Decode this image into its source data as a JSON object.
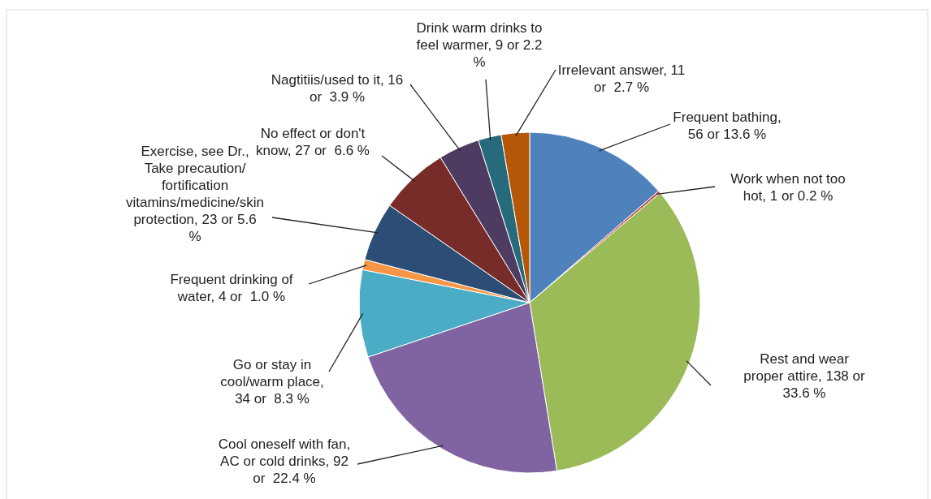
{
  "chart_data": {
    "type": "pie",
    "categories": [
      "Frequent bathing, 56 or 13.6 %",
      "Work when not too hot, 1 or 0.2 %",
      "Rest and wear proper attire, 138 or 33.6 %",
      "Cool oneself with fan, AC or cold drinks, 92 or  22.4 %",
      "Go or stay in cool/warm place, 34 or  8.3 %",
      "Frequent drinking of water, 4 or  1.0 %",
      "Exercise, see Dr., Take precaution/ fortification vitamins/medicine/skin protection, 23 or 5.6 %",
      "No effect or don't know, 27 or  6.6 %",
      "Nagtitiis/used to it, 16 or  3.9 %",
      "Drink warm drinks to feel warmer, 9 or 2.2 %",
      "Irrelevant answer, 11 or  2.7 %"
    ],
    "values": [
      56,
      1,
      138,
      92,
      34,
      4,
      23,
      27,
      16,
      9,
      11
    ],
    "colors": [
      "#4f81bd",
      "#c0504d",
      "#9bbb59",
      "#8064a2",
      "#4bacc6",
      "#f79646",
      "#2c4d75",
      "#772c2a",
      "#4d3b62",
      "#276a7c",
      "#b65708"
    ],
    "legend": false
  }
}
